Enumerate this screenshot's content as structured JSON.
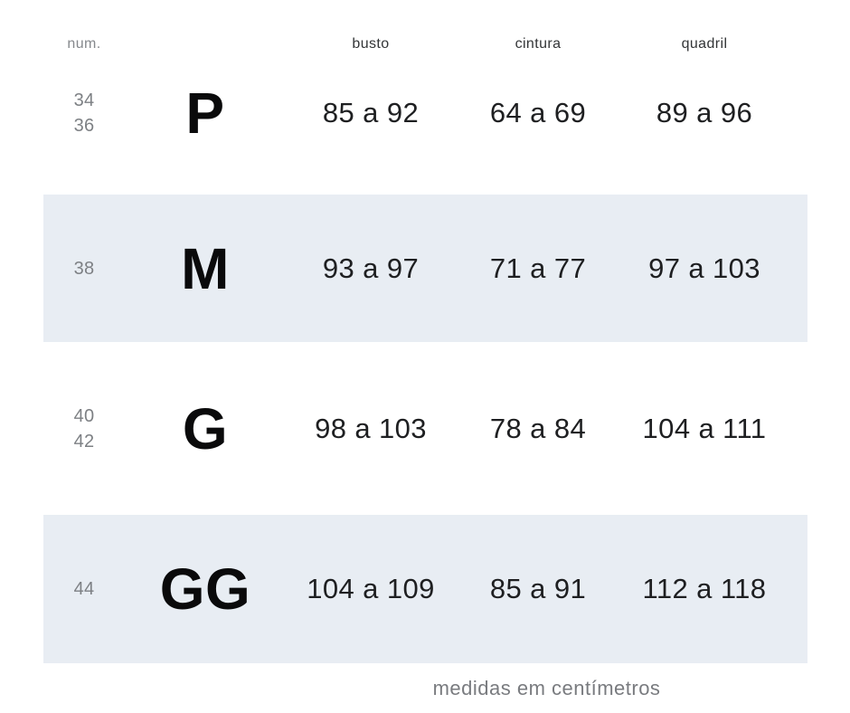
{
  "table": {
    "header": {
      "num": "num.",
      "busto": "busto",
      "cintura": "cintura",
      "quadril": "quadril"
    },
    "rows": [
      {
        "nums": [
          "34",
          "36"
        ],
        "size": "P",
        "busto": "85 a 92",
        "cintura": "64 a 69",
        "quadril": "89 a 96"
      },
      {
        "nums": [
          "38"
        ],
        "size": "M",
        "busto": "93 a 97",
        "cintura": "71 a 77",
        "quadril": "97 a 103"
      },
      {
        "nums": [
          "40",
          "42"
        ],
        "size": "G",
        "busto": "98 a 103",
        "cintura": "78 a 84",
        "quadril": "104 a 111"
      },
      {
        "nums": [
          "44"
        ],
        "size": "GG",
        "busto": "104 a 109",
        "cintura": "85 a 91",
        "quadril": "112 a 118"
      }
    ],
    "footer_note": "medidas em centímetros"
  },
  "colors": {
    "background": "#ffffff",
    "band": "#e8edf3",
    "text_dark": "#1e1f21",
    "text_black": "#0a0a0b",
    "text_gray": "#7d8084"
  },
  "chart_data": {
    "type": "table",
    "columns": [
      "num.",
      "",
      "busto",
      "cintura",
      "quadril"
    ],
    "rows": [
      [
        "34 / 36",
        "P",
        "85 a 92",
        "64 a 69",
        "89 a 96"
      ],
      [
        "38",
        "M",
        "93 a 97",
        "71 a 77",
        "97 a 103"
      ],
      [
        "40 / 42",
        "G",
        "98 a 103",
        "78 a 84",
        "104 a 111"
      ],
      [
        "44",
        "GG",
        "104 a 109",
        "85 a 91",
        "112 a 118"
      ]
    ],
    "note": "medidas em centímetros",
    "layout": {
      "shaded_rows": [
        1,
        3
      ],
      "grid": false
    }
  }
}
